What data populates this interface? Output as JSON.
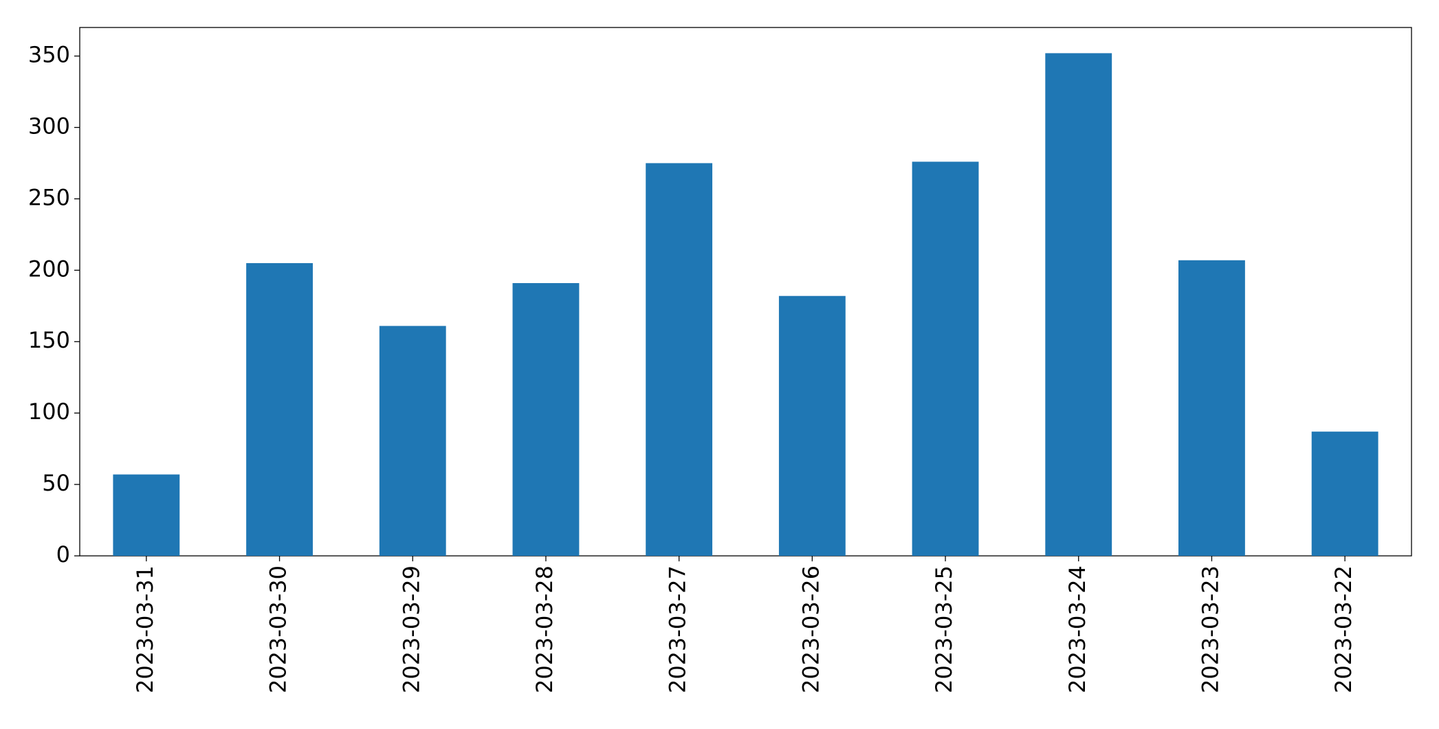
{
  "chart_data": {
    "type": "bar",
    "categories": [
      "2023-03-31",
      "2023-03-30",
      "2023-03-29",
      "2023-03-28",
      "2023-03-27",
      "2023-03-26",
      "2023-03-25",
      "2023-03-24",
      "2023-03-23",
      "2023-03-22"
    ],
    "values": [
      57,
      205,
      161,
      191,
      275,
      182,
      276,
      352,
      207,
      87
    ],
    "color": "#1f77b4",
    "ylim": [
      0,
      370
    ],
    "yticks": [
      0,
      50,
      100,
      150,
      200,
      250,
      300,
      350
    ],
    "grid": false
  }
}
